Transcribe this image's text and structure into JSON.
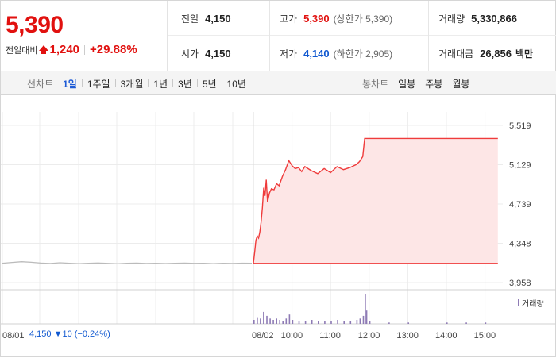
{
  "header": {
    "price": "5,390",
    "change_label": "전일대비",
    "change_value": "1,240",
    "change_pct": "+29.88%"
  },
  "stats": {
    "prev_close_label": "전일",
    "prev_close": "4,150",
    "high_label": "고가",
    "high": "5,390",
    "upper_limit": "(상한가 5,390)",
    "volume_label": "거래량",
    "volume": "5,330,866",
    "open_label": "시가",
    "open": "4,150",
    "low_label": "저가",
    "low": "4,140",
    "lower_limit": "(하한가 2,905)",
    "turnover_label": "거래대금",
    "turnover": "26,856",
    "turnover_unit": "백만"
  },
  "line_tabs": {
    "title": "선차트",
    "items": [
      "1일",
      "1주일",
      "3개월",
      "1년",
      "3년",
      "5년",
      "10년"
    ],
    "active": "1일"
  },
  "candle_tabs": {
    "title": "봉차트",
    "items": [
      "일봉",
      "주봉",
      "월봉"
    ]
  },
  "chart_data": {
    "type": "area",
    "y_ticks": [
      "5,519",
      "5,129",
      "4,739",
      "4,348",
      "3,958"
    ],
    "ylim": [
      3958,
      5519
    ],
    "x_ticks": [
      "08/01",
      "08/02",
      "10:00",
      "11:00",
      "12:00",
      "13:00",
      "14:00",
      "15:00"
    ],
    "prev_day_label": "08/01",
    "prev_day_close": "4,150",
    "prev_day_change": "10",
    "prev_day_pct": "(−0.24%)",
    "volume_legend": "거래량",
    "prev_day_series": [
      4150,
      4158,
      4165,
      4160,
      4152,
      4148,
      4155,
      4150,
      4146,
      4150,
      4153,
      4149,
      4145,
      4150,
      4152,
      4148,
      4150,
      4147,
      4150,
      4152,
      4149,
      4150,
      4146,
      4150,
      4148,
      4151,
      4150
    ],
    "today_series": [
      {
        "t": "09:00",
        "v": 4150
      },
      {
        "t": "09:02",
        "v": 4260
      },
      {
        "t": "09:04",
        "v": 4380
      },
      {
        "t": "09:06",
        "v": 4420
      },
      {
        "t": "09:08",
        "v": 4400
      },
      {
        "t": "09:10",
        "v": 4460
      },
      {
        "t": "09:12",
        "v": 4560
      },
      {
        "t": "09:14",
        "v": 4700
      },
      {
        "t": "09:16",
        "v": 4900
      },
      {
        "t": "09:18",
        "v": 4820
      },
      {
        "t": "09:20",
        "v": 4980
      },
      {
        "t": "09:22",
        "v": 4760
      },
      {
        "t": "09:25",
        "v": 4850
      },
      {
        "t": "09:28",
        "v": 4890
      },
      {
        "t": "09:32",
        "v": 4880
      },
      {
        "t": "09:36",
        "v": 4940
      },
      {
        "t": "09:40",
        "v": 4920
      },
      {
        "t": "09:45",
        "v": 5010
      },
      {
        "t": "09:50",
        "v": 5080
      },
      {
        "t": "09:55",
        "v": 5170
      },
      {
        "t": "10:00",
        "v": 5120
      },
      {
        "t": "10:05",
        "v": 5090
      },
      {
        "t": "10:10",
        "v": 5100
      },
      {
        "t": "10:15",
        "v": 5060
      },
      {
        "t": "10:20",
        "v": 5110
      },
      {
        "t": "10:30",
        "v": 5070
      },
      {
        "t": "10:40",
        "v": 5040
      },
      {
        "t": "10:50",
        "v": 5090
      },
      {
        "t": "11:00",
        "v": 5050
      },
      {
        "t": "11:10",
        "v": 5110
      },
      {
        "t": "11:20",
        "v": 5080
      },
      {
        "t": "11:30",
        "v": 5100
      },
      {
        "t": "11:40",
        "v": 5130
      },
      {
        "t": "11:45",
        "v": 5160
      },
      {
        "t": "11:50",
        "v": 5210
      },
      {
        "t": "11:53",
        "v": 5390
      },
      {
        "t": "12:00",
        "v": 5390
      },
      {
        "t": "13:00",
        "v": 5390
      },
      {
        "t": "14:00",
        "v": 5390
      },
      {
        "t": "15:00",
        "v": 5390
      },
      {
        "t": "15:20",
        "v": 5390
      }
    ],
    "volume_bars": [
      {
        "t": "09:00",
        "v": 3
      },
      {
        "t": "09:05",
        "v": 5
      },
      {
        "t": "09:10",
        "v": 4
      },
      {
        "t": "09:15",
        "v": 9
      },
      {
        "t": "09:20",
        "v": 6
      },
      {
        "t": "09:25",
        "v": 4
      },
      {
        "t": "09:30",
        "v": 3
      },
      {
        "t": "09:35",
        "v": 4
      },
      {
        "t": "09:40",
        "v": 3
      },
      {
        "t": "09:45",
        "v": 2
      },
      {
        "t": "09:50",
        "v": 4
      },
      {
        "t": "09:55",
        "v": 7
      },
      {
        "t": "10:00",
        "v": 3
      },
      {
        "t": "10:10",
        "v": 2
      },
      {
        "t": "10:20",
        "v": 2
      },
      {
        "t": "10:30",
        "v": 3
      },
      {
        "t": "10:40",
        "v": 2
      },
      {
        "t": "10:50",
        "v": 2
      },
      {
        "t": "11:00",
        "v": 2
      },
      {
        "t": "11:10",
        "v": 3
      },
      {
        "t": "11:20",
        "v": 2
      },
      {
        "t": "11:30",
        "v": 2
      },
      {
        "t": "11:40",
        "v": 3
      },
      {
        "t": "11:45",
        "v": 4
      },
      {
        "t": "11:50",
        "v": 6
      },
      {
        "t": "11:53",
        "v": 22
      },
      {
        "t": "11:55",
        "v": 10
      },
      {
        "t": "12:00",
        "v": 2
      },
      {
        "t": "12:30",
        "v": 1
      },
      {
        "t": "13:00",
        "v": 1
      },
      {
        "t": "14:00",
        "v": 1
      },
      {
        "t": "14:30",
        "v": 1
      },
      {
        "t": "15:00",
        "v": 1
      }
    ]
  },
  "colors": {
    "up": "#e1110f",
    "down": "#1058d0",
    "area_fill": "#fde6e6",
    "line": "#ef3b3b",
    "prev_line": "#bbbbbb",
    "volume": "#8e7bb5"
  }
}
